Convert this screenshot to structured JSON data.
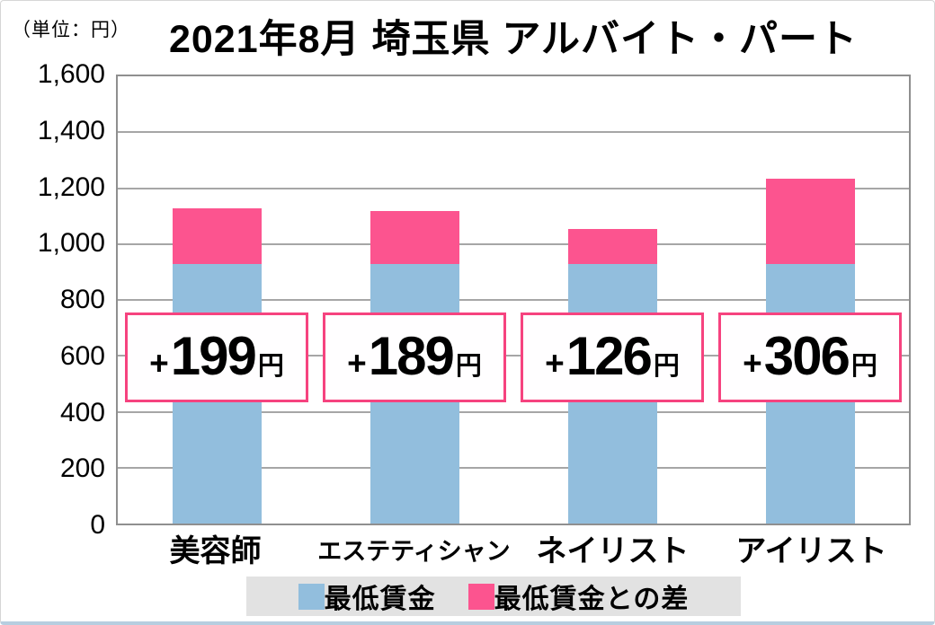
{
  "unit_label": "（単位：円）",
  "title": "2021年8月 埼玉県 アルバイト・パート",
  "colors": {
    "bar_blue": "#92bedd",
    "bar_pink": "#fc548f",
    "box_border": "#f6437f",
    "grid": "#a6a6a6",
    "legend_bg": "#e2e2e2"
  },
  "chart_data": {
    "type": "bar",
    "stacked": true,
    "title": "2021年8月 埼玉県 アルバイト・パート",
    "unit": "円",
    "categories": [
      "美容師",
      "エステティシャン",
      "ネイリスト",
      "アイリスト"
    ],
    "series": [
      {
        "name": "最低賃金",
        "color": "#92bedd",
        "values": [
          928,
          928,
          928,
          928
        ]
      },
      {
        "name": "最低賃金との差",
        "color": "#fc548f",
        "values": [
          199,
          189,
          126,
          306
        ]
      }
    ],
    "totals": [
      1127,
      1117,
      1054,
      1234
    ],
    "annotations": [
      {
        "plus": "+",
        "value": "199",
        "unit": "円"
      },
      {
        "plus": "+",
        "value": "189",
        "unit": "円"
      },
      {
        "plus": "+",
        "value": "126",
        "unit": "円"
      },
      {
        "plus": "+",
        "value": "306",
        "unit": "円"
      }
    ],
    "ylim": [
      0,
      1600
    ],
    "ytick_step": 200,
    "yticks": [
      {
        "label": "1,600",
        "value": 1600
      },
      {
        "label": "1,400",
        "value": 1400
      },
      {
        "label": "1,200",
        "value": 1200
      },
      {
        "label": "1,000",
        "value": 1000
      },
      {
        "label": "800",
        "value": 800
      },
      {
        "label": "600",
        "value": 600
      },
      {
        "label": "400",
        "value": 400
      },
      {
        "label": "200",
        "value": 200
      },
      {
        "label": "0",
        "value": 0
      }
    ],
    "grid": true,
    "legend_position": "bottom"
  },
  "legend": {
    "items": [
      {
        "label": "最低賃金",
        "color": "#92bedd"
      },
      {
        "label": "最低賃金との差",
        "color": "#fc548f"
      }
    ]
  }
}
